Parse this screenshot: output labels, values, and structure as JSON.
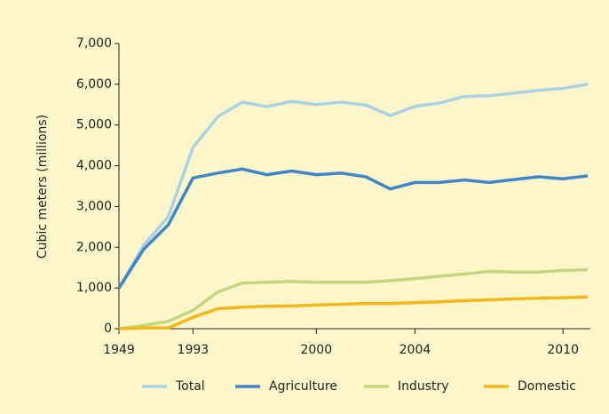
{
  "chart_data": {
    "type": "line",
    "ylabel": "Cubic meters (millions)",
    "categories": [
      "1949",
      null,
      null,
      "1993",
      null,
      null,
      null,
      null,
      "2000",
      null,
      null,
      null,
      "2004",
      null,
      null,
      null,
      null,
      null,
      "2010",
      null
    ],
    "series": [
      {
        "name": "Total",
        "color": "#a9d3e3",
        "values": [
          1000,
          2050,
          2750,
          4450,
          5200,
          5560,
          5450,
          5580,
          5500,
          5560,
          5490,
          5230,
          5460,
          5540,
          5700,
          5720,
          5780,
          5850,
          5900,
          6000
        ]
      },
      {
        "name": "Agriculture",
        "color": "#3f86c8",
        "values": [
          1000,
          1950,
          2550,
          3700,
          3820,
          3920,
          3780,
          3870,
          3780,
          3820,
          3730,
          3430,
          3590,
          3590,
          3650,
          3590,
          3660,
          3730,
          3680,
          3750
        ]
      },
      {
        "name": "Industry",
        "color": "#c4d77e",
        "values": [
          0,
          80,
          180,
          450,
          900,
          1120,
          1140,
          1160,
          1140,
          1140,
          1140,
          1180,
          1230,
          1290,
          1340,
          1410,
          1390,
          1390,
          1430,
          1450
        ]
      },
      {
        "name": "Domestic",
        "color": "#f2b71a",
        "values": [
          0,
          20,
          20,
          280,
          490,
          530,
          550,
          560,
          580,
          600,
          620,
          620,
          640,
          660,
          690,
          710,
          730,
          750,
          760,
          780
        ]
      }
    ],
    "ylim": [
      0,
      7000
    ],
    "yticks": [
      0,
      {
        "value": 1000,
        "label": "1,000"
      },
      {
        "value": 2000,
        "label": "2,000"
      },
      {
        "value": 3000,
        "label": "3,000"
      },
      {
        "value": 4000,
        "label": "4,000"
      },
      {
        "value": 5000,
        "label": "5,000"
      },
      {
        "value": 6000,
        "label": "6,000"
      },
      {
        "value": 7000,
        "label": "7,000"
      }
    ],
    "legend": "bottom"
  }
}
